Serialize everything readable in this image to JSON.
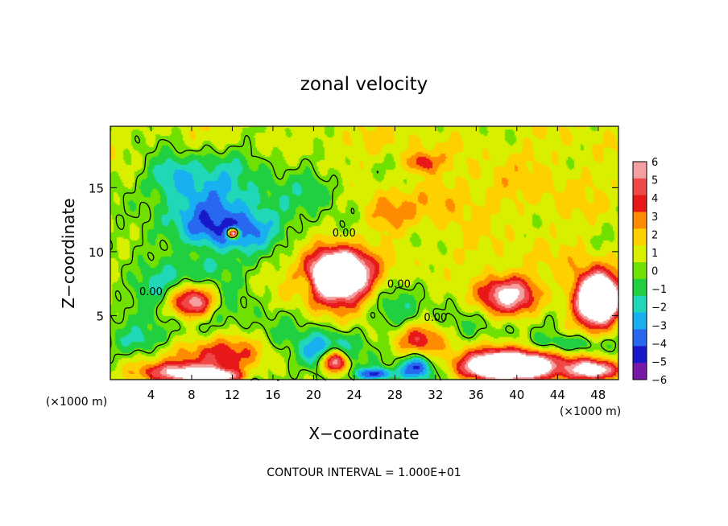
{
  "chart_data": {
    "type": "heatmap",
    "title": "zonal velocity",
    "xlabel": "X−coordinate",
    "ylabel": "Z−coordinate",
    "x_unit_left": "(×1000 m)",
    "x_unit_right": "(×1000 m)",
    "xlim": [
      0,
      50
    ],
    "ylim": [
      0,
      19.8
    ],
    "x_ticks": [
      4,
      8,
      12,
      16,
      20,
      24,
      28,
      32,
      36,
      40,
      44,
      48
    ],
    "y_ticks": [
      5,
      10,
      15
    ],
    "colorbar": {
      "levels": [
        6,
        5,
        4,
        3,
        2,
        1,
        0,
        -1,
        -2,
        -3,
        -4,
        -5,
        -6
      ],
      "labels": [
        "6",
        "5",
        "4",
        "3",
        "2",
        "1",
        "0",
        "−1",
        "−2",
        "−3",
        "−4",
        "−5",
        "−6"
      ],
      "colors": [
        "#f5a0a0",
        "#f04848",
        "#e81818",
        "#ff8c00",
        "#ffd000",
        "#d8f000",
        "#70e000",
        "#20d040",
        "#20d8b8",
        "#18b0f0",
        "#2868f0",
        "#1818c8",
        "#7818a8"
      ]
    },
    "footer": "CONTOUR INTERVAL = 1.000E+01",
    "contour_labels": [
      {
        "text": "0.00",
        "x": 4.0,
        "y": 6.6
      },
      {
        "text": "0.00",
        "x": 23.0,
        "y": 11.2
      },
      {
        "text": "0.00",
        "x": 28.4,
        "y": 7.2
      },
      {
        "text": "0.00",
        "x": 32.0,
        "y": 4.6
      }
    ],
    "fields": [
      {
        "x": 10,
        "y": 14,
        "rx": 6,
        "ry": 3.5,
        "v": -3.5
      },
      {
        "x": 6,
        "y": 16,
        "rx": 3,
        "ry": 2,
        "v": -3
      },
      {
        "x": 12,
        "y": 11.5,
        "rx": 5,
        "ry": 1.8,
        "v": -3
      },
      {
        "x": 20,
        "y": 15,
        "rx": 4,
        "ry": 2,
        "v": -1.5
      },
      {
        "x": 13,
        "y": 12.5,
        "rx": 9,
        "ry": 2.5,
        "v": -1.5
      },
      {
        "x": 12,
        "y": 11.5,
        "rx": 0.7,
        "ry": 0.5,
        "v": 12
      },
      {
        "x": 7.5,
        "y": 6.5,
        "rx": 5.5,
        "ry": 3.2,
        "v": -4.5
      },
      {
        "x": 8,
        "y": 6.2,
        "rx": 3.2,
        "ry": 1.8,
        "v": 10
      },
      {
        "x": 3,
        "y": 3,
        "rx": 3,
        "ry": 1.5,
        "v": -2
      },
      {
        "x": 10,
        "y": 2,
        "rx": 6.5,
        "ry": 1.8,
        "v": 4
      },
      {
        "x": 7,
        "y": 0.6,
        "rx": 5,
        "ry": 1,
        "v": 6
      },
      {
        "x": 10,
        "y": 0.3,
        "rx": 3,
        "ry": 0.6,
        "v": 8
      },
      {
        "x": 22,
        "y": 7.8,
        "rx": 4.5,
        "ry": 3,
        "v": 5
      },
      {
        "x": 22.5,
        "y": 8.4,
        "rx": 3.2,
        "ry": 2,
        "v": 10
      },
      {
        "x": 19,
        "y": 7.5,
        "rx": 1.2,
        "ry": 1.2,
        "v": -2
      },
      {
        "x": 21,
        "y": 2.2,
        "rx": 3.5,
        "ry": 2,
        "v": -4.5
      },
      {
        "x": 22,
        "y": 1.5,
        "rx": 1.6,
        "ry": 1.2,
        "v": 9
      },
      {
        "x": 26,
        "y": 0.5,
        "rx": 2.5,
        "ry": 0.6,
        "v": -5
      },
      {
        "x": 30.5,
        "y": 3.2,
        "rx": 3,
        "ry": 1.5,
        "v": 3.5
      },
      {
        "x": 30,
        "y": 1,
        "rx": 2,
        "ry": 1.2,
        "v": -5
      },
      {
        "x": 28,
        "y": 5.5,
        "rx": 3,
        "ry": 2,
        "v": -1.5
      },
      {
        "x": 39,
        "y": 6.7,
        "rx": 5.8,
        "ry": 3.2,
        "v": -5.5
      },
      {
        "x": 39,
        "y": 6.7,
        "rx": 4.5,
        "ry": 2.3,
        "v": 12
      },
      {
        "x": 40,
        "y": 1.5,
        "rx": 7,
        "ry": 1.8,
        "v": 6
      },
      {
        "x": 39,
        "y": 1,
        "rx": 4.5,
        "ry": 1.1,
        "v": 10
      },
      {
        "x": 47.5,
        "y": 6.5,
        "rx": 3.5,
        "ry": 3,
        "v": 5
      },
      {
        "x": 48,
        "y": 6.3,
        "rx": 2.2,
        "ry": 2,
        "v": 11
      },
      {
        "x": 47.5,
        "y": 0.8,
        "rx": 3,
        "ry": 1,
        "v": 8
      },
      {
        "x": 45,
        "y": 2.8,
        "rx": 5,
        "ry": 1,
        "v": -3
      },
      {
        "x": 38,
        "y": 9.5,
        "rx": 12,
        "ry": 2,
        "v": 1.2
      },
      {
        "x": 42,
        "y": 15,
        "rx": 10,
        "ry": 5,
        "v": 1
      },
      {
        "x": 30.5,
        "y": 17,
        "rx": 2,
        "ry": 1,
        "v": 3.5
      },
      {
        "x": 27,
        "y": 13,
        "rx": 3,
        "ry": 2,
        "v": 2.5
      },
      {
        "x": 33,
        "y": 14,
        "rx": 4,
        "ry": 2.5,
        "v": 1.5
      },
      {
        "x": 14,
        "y": 17,
        "rx": 6,
        "ry": 2,
        "v": -1
      },
      {
        "x": 3,
        "y": 11,
        "rx": 3,
        "ry": 2,
        "v": -0.8
      },
      {
        "x": 10,
        "y": 9,
        "rx": 3,
        "ry": 1,
        "v": -1.2
      },
      {
        "x": 16,
        "y": 4,
        "rx": 3,
        "ry": 2.5,
        "v": -0.8
      },
      {
        "x": 25,
        "y": 18.5,
        "rx": 8,
        "ry": 1.5,
        "v": 0.8
      }
    ]
  }
}
